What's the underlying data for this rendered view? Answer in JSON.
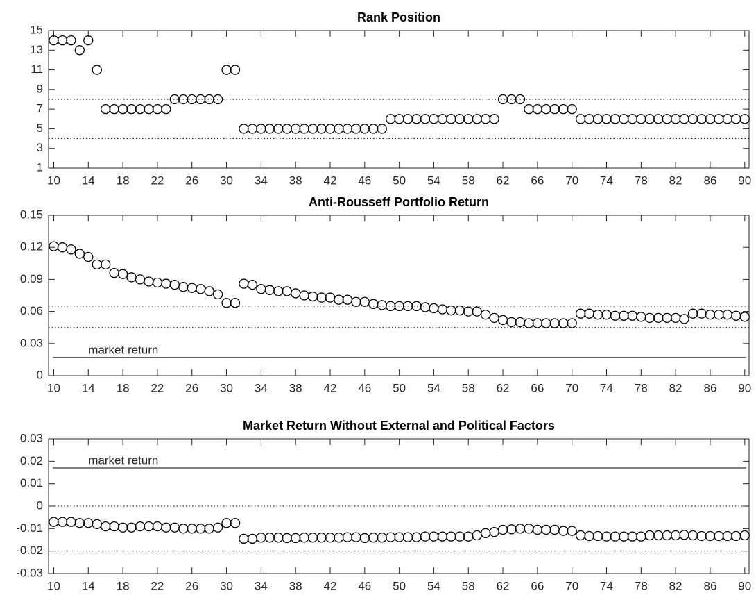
{
  "chart_data": [
    {
      "type": "scatter",
      "title": "Rank Position",
      "x": [
        10,
        11,
        12,
        13,
        14,
        15,
        16,
        17,
        18,
        19,
        20,
        21,
        22,
        23,
        24,
        25,
        26,
        27,
        28,
        29,
        30,
        31,
        32,
        33,
        34,
        35,
        36,
        37,
        38,
        39,
        40,
        41,
        42,
        43,
        44,
        45,
        46,
        47,
        48,
        49,
        50,
        51,
        52,
        53,
        54,
        55,
        56,
        57,
        58,
        59,
        60,
        61,
        62,
        63,
        64,
        65,
        66,
        67,
        68,
        69,
        70,
        71,
        72,
        73,
        74,
        75,
        76,
        77,
        78,
        79,
        80,
        81,
        82,
        83,
        84,
        85,
        86,
        87,
        88,
        89,
        90
      ],
      "values": [
        14,
        14,
        14,
        13,
        14,
        11,
        7,
        7,
        7,
        7,
        7,
        7,
        7,
        7,
        8,
        8,
        8,
        8,
        8,
        8,
        11,
        11,
        5,
        5,
        5,
        5,
        5,
        5,
        5,
        5,
        5,
        5,
        5,
        5,
        5,
        5,
        5,
        5,
        5,
        6,
        6,
        6,
        6,
        6,
        6,
        6,
        6,
        6,
        6,
        6,
        6,
        6,
        8,
        8,
        8,
        7,
        7,
        7,
        7,
        7,
        7,
        6,
        6,
        6,
        6,
        6,
        6,
        6,
        6,
        6,
        6,
        6,
        6,
        6,
        6,
        6,
        6,
        6,
        6,
        6,
        6
      ],
      "xlim": [
        9.4,
        90.5
      ],
      "xticks": [
        10,
        14,
        18,
        22,
        26,
        30,
        34,
        38,
        42,
        46,
        50,
        54,
        58,
        62,
        66,
        70,
        74,
        78,
        82,
        86,
        90
      ],
      "ylim": [
        1,
        15
      ],
      "yticks": [
        1,
        3,
        5,
        7,
        9,
        11,
        13,
        15
      ],
      "dotted_lines": [
        8,
        4
      ],
      "color": "#000000"
    },
    {
      "type": "scatter",
      "title": "Anti-Rousseff Portfolio Return",
      "x": [
        10,
        11,
        12,
        13,
        14,
        15,
        16,
        17,
        18,
        19,
        20,
        21,
        22,
        23,
        24,
        25,
        26,
        27,
        28,
        29,
        30,
        31,
        32,
        33,
        34,
        35,
        36,
        37,
        38,
        39,
        40,
        41,
        42,
        43,
        44,
        45,
        46,
        47,
        48,
        49,
        50,
        51,
        52,
        53,
        54,
        55,
        56,
        57,
        58,
        59,
        60,
        61,
        62,
        63,
        64,
        65,
        66,
        67,
        68,
        69,
        70,
        71,
        72,
        73,
        74,
        75,
        76,
        77,
        78,
        79,
        80,
        81,
        82,
        83,
        84,
        85,
        86,
        87,
        88,
        89,
        90
      ],
      "values": [
        0.121,
        0.12,
        0.118,
        0.114,
        0.111,
        0.104,
        0.104,
        0.096,
        0.095,
        0.092,
        0.09,
        0.088,
        0.087,
        0.086,
        0.085,
        0.083,
        0.082,
        0.081,
        0.079,
        0.076,
        0.068,
        0.068,
        0.086,
        0.085,
        0.081,
        0.08,
        0.079,
        0.079,
        0.077,
        0.075,
        0.074,
        0.073,
        0.073,
        0.071,
        0.071,
        0.069,
        0.069,
        0.067,
        0.066,
        0.065,
        0.065,
        0.065,
        0.065,
        0.064,
        0.063,
        0.062,
        0.061,
        0.061,
        0.06,
        0.06,
        0.057,
        0.054,
        0.052,
        0.05,
        0.05,
        0.049,
        0.049,
        0.049,
        0.049,
        0.049,
        0.049,
        0.058,
        0.058,
        0.057,
        0.057,
        0.056,
        0.056,
        0.056,
        0.055,
        0.054,
        0.054,
        0.054,
        0.054,
        0.053,
        0.058,
        0.058,
        0.057,
        0.057,
        0.057,
        0.056,
        0.055
      ],
      "xlim": [
        9.4,
        90.5
      ],
      "xticks": [
        10,
        14,
        18,
        22,
        26,
        30,
        34,
        38,
        42,
        46,
        50,
        54,
        58,
        62,
        66,
        70,
        74,
        78,
        82,
        86,
        90
      ],
      "ylim": [
        0,
        0.15
      ],
      "yticks": [
        0,
        0.03,
        0.06,
        0.09,
        0.12,
        0.15
      ],
      "dotted_lines": [
        0.065,
        0.045
      ],
      "market_line": 0.017,
      "annotation": "market return",
      "color": "#000000"
    },
    {
      "type": "scatter",
      "title": "Market Return Without External and Political Factors",
      "x": [
        10,
        11,
        12,
        13,
        14,
        15,
        16,
        17,
        18,
        19,
        20,
        21,
        22,
        23,
        24,
        25,
        26,
        27,
        28,
        29,
        30,
        31,
        32,
        33,
        34,
        35,
        36,
        37,
        38,
        39,
        40,
        41,
        42,
        43,
        44,
        45,
        46,
        47,
        48,
        49,
        50,
        51,
        52,
        53,
        54,
        55,
        56,
        57,
        58,
        59,
        60,
        61,
        62,
        63,
        64,
        65,
        66,
        67,
        68,
        69,
        70,
        71,
        72,
        73,
        74,
        75,
        76,
        77,
        78,
        79,
        80,
        81,
        82,
        83,
        84,
        85,
        86,
        87,
        88,
        89,
        90
      ],
      "values": [
        -0.007,
        -0.007,
        -0.007,
        -0.0075,
        -0.0075,
        -0.008,
        -0.009,
        -0.009,
        -0.0095,
        -0.0095,
        -0.009,
        -0.009,
        -0.009,
        -0.0095,
        -0.0095,
        -0.01,
        -0.01,
        -0.01,
        -0.01,
        -0.0095,
        -0.0075,
        -0.0075,
        -0.0145,
        -0.0145,
        -0.014,
        -0.014,
        -0.014,
        -0.0142,
        -0.0142,
        -0.014,
        -0.014,
        -0.014,
        -0.014,
        -0.014,
        -0.0138,
        -0.0138,
        -0.0142,
        -0.014,
        -0.014,
        -0.0138,
        -0.0138,
        -0.0138,
        -0.0138,
        -0.0135,
        -0.0135,
        -0.0135,
        -0.0135,
        -0.0135,
        -0.0135,
        -0.013,
        -0.012,
        -0.0115,
        -0.0105,
        -0.0103,
        -0.01,
        -0.01,
        -0.0105,
        -0.0105,
        -0.0105,
        -0.011,
        -0.011,
        -0.013,
        -0.0133,
        -0.0133,
        -0.0135,
        -0.0135,
        -0.0135,
        -0.0135,
        -0.0135,
        -0.013,
        -0.013,
        -0.013,
        -0.013,
        -0.0128,
        -0.013,
        -0.0133,
        -0.0133,
        -0.0133,
        -0.0133,
        -0.0133,
        -0.013
      ],
      "xlim": [
        9.4,
        90.5
      ],
      "xticks": [
        10,
        14,
        18,
        22,
        26,
        30,
        34,
        38,
        42,
        46,
        50,
        54,
        58,
        62,
        66,
        70,
        74,
        78,
        82,
        86,
        90
      ],
      "ylim": [
        -0.03,
        0.03
      ],
      "yticks": [
        -0.03,
        -0.02,
        -0.01,
        0,
        0.01,
        0.02,
        0.03
      ],
      "dotted_lines": [
        0,
        -0.02
      ],
      "market_line": 0.017,
      "annotation": "market return",
      "color": "#000000"
    }
  ]
}
